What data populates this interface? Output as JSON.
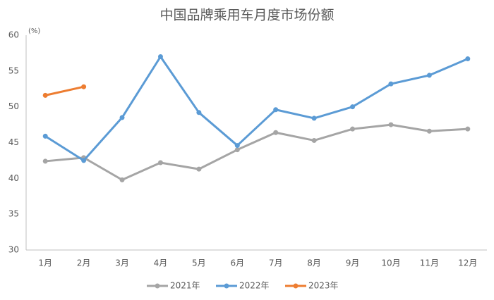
{
  "chart_data": {
    "type": "line",
    "title": "中国品牌乘用车月度市场份额",
    "y_unit": "(%)",
    "categories": [
      "1月",
      "2月",
      "3月",
      "4月",
      "5月",
      "6月",
      "7月",
      "8月",
      "9月",
      "10月",
      "11月",
      "12月"
    ],
    "series": [
      {
        "name": "2021年",
        "color": "#a5a5a5",
        "values": [
          42.4,
          42.9,
          39.8,
          42.2,
          41.3,
          44.0,
          46.4,
          45.3,
          46.9,
          47.5,
          46.6,
          46.9
        ]
      },
      {
        "name": "2022年",
        "color": "#5b9bd5",
        "values": [
          45.9,
          42.5,
          48.5,
          57.0,
          49.2,
          44.6,
          49.6,
          48.4,
          50.0,
          53.2,
          54.4,
          56.7
        ]
      },
      {
        "name": "2023年",
        "color": "#ed7d31",
        "values": [
          51.6,
          52.8,
          null,
          null,
          null,
          null,
          null,
          null,
          null,
          null,
          null,
          null
        ]
      }
    ],
    "ylim": [
      30,
      60
    ],
    "yticks": [
      30,
      35,
      40,
      45,
      50,
      55,
      60
    ],
    "grid": false,
    "legend": "bottom"
  }
}
